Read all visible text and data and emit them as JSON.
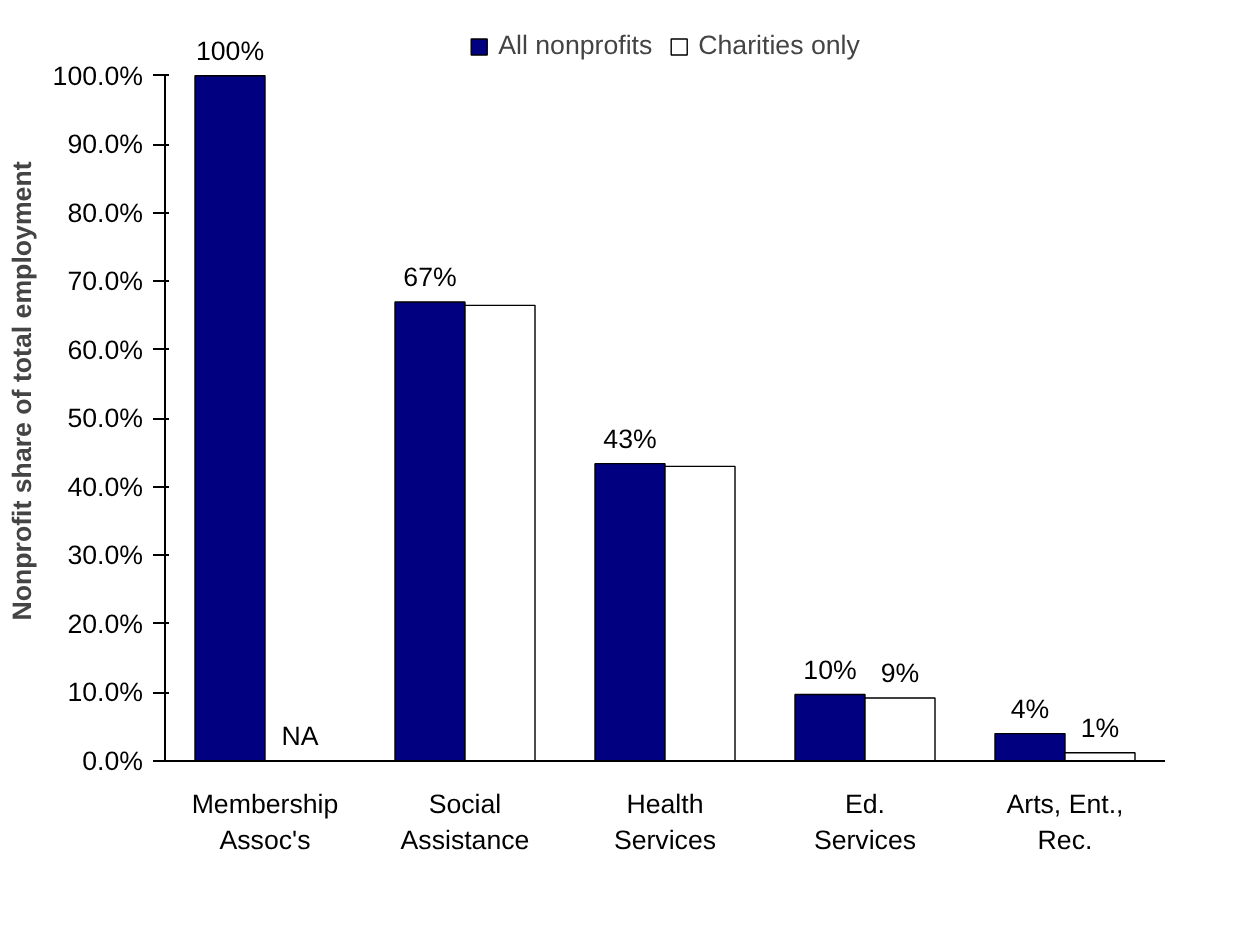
{
  "chart_data": {
    "type": "bar",
    "ylabel": "Nonprofit share of total employment",
    "categories": [
      "Membership\nAssoc's",
      "Social\nAssistance",
      "Health\nServices",
      "Ed.\nServices",
      "Arts, Ent.,\nRec."
    ],
    "series": [
      {
        "name": "All nonprofits",
        "color": "#000080",
        "values": [
          100,
          67,
          43.4,
          9.7,
          4
        ],
        "value_labels": [
          "100%",
          "67%",
          "43%",
          "10%",
          "4%"
        ]
      },
      {
        "name": "Charities only",
        "color": "#ffffff",
        "values": [
          null,
          66.5,
          43,
          9.2,
          1.2
        ],
        "value_labels": [
          "NA",
          null,
          null,
          "9%",
          "1%"
        ]
      }
    ],
    "ylim": [
      0,
      100
    ],
    "yticks": [
      {
        "value": 0,
        "label": "0.0%"
      },
      {
        "value": 10,
        "label": "10.0%"
      },
      {
        "value": 20,
        "label": "20.0%"
      },
      {
        "value": 30,
        "label": "30.0%"
      },
      {
        "value": 40,
        "label": "40.0%"
      },
      {
        "value": 50,
        "label": "50.0%"
      },
      {
        "value": 60,
        "label": "60.0%"
      },
      {
        "value": 70,
        "label": "70.0%"
      },
      {
        "value": 80,
        "label": "80.0%"
      },
      {
        "value": 90,
        "label": "90.0%"
      },
      {
        "value": 100,
        "label": "100.0%"
      }
    ],
    "grid": false,
    "legend": "top"
  }
}
